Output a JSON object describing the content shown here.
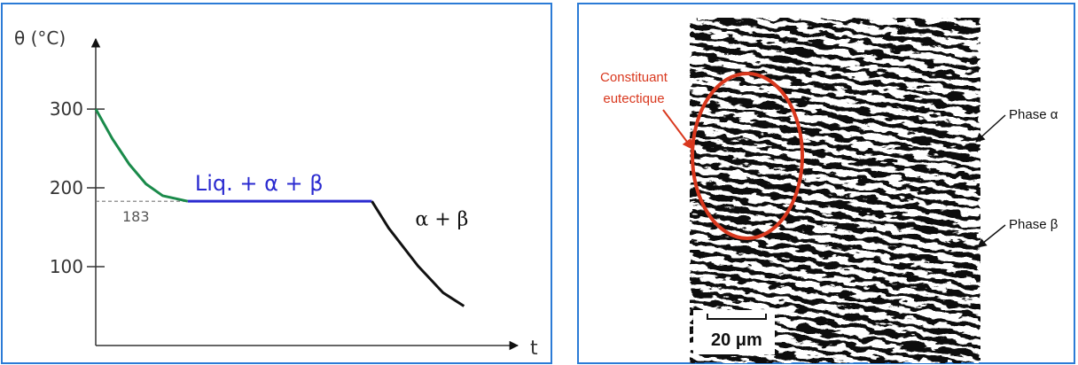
{
  "chart_data": {
    "type": "line",
    "ylabel": "θ (°C)",
    "xlabel": "t",
    "xlim": [
      0,
      100
    ],
    "ylim": [
      0,
      390
    ],
    "yticks": [
      100,
      200,
      300
    ],
    "grid": false,
    "reference": {
      "y": 183
    },
    "series": [
      {
        "color": "#1a8a4a",
        "x": [
          0,
          4,
          8,
          12,
          16,
          22
        ],
        "values": [
          300,
          262,
          230,
          205,
          190,
          183
        ]
      },
      {
        "name": "Liq. + α + β",
        "color": "#2a2ad0",
        "x": [
          22,
          66
        ],
        "values": [
          183,
          183
        ]
      },
      {
        "name": "α + β",
        "color": "#111111",
        "x": [
          66,
          70,
          77,
          83,
          88
        ],
        "values": [
          183,
          149,
          101,
          67,
          50
        ]
      }
    ]
  },
  "micrograph": {
    "annotation_lines": [
      "Constituant",
      "eutectique"
    ],
    "phases": [
      "Phase α",
      "Phase β"
    ],
    "scale_bar": "20 μm"
  }
}
